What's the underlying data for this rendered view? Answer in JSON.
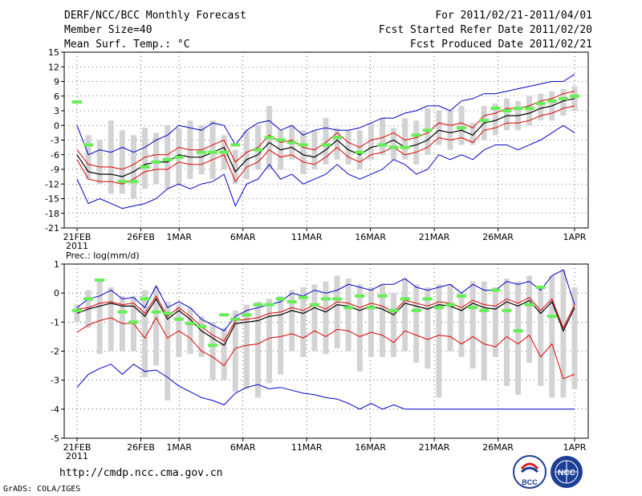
{
  "header": {
    "title": "DERF/NCC/BCC Monthly Forecast",
    "member_size": "Member Size=40",
    "variable": "Mean Surf. Temp.: °C",
    "forecast_period": "For 2011/02/21-2011/04/01",
    "fcst_started": "Fcst Started Refer Date 2011/02/20",
    "fcst_produced": "Fcst Produced Date 2011/02/21"
  },
  "footer": {
    "url": "http://cmdp.ncc.cma.gov.cn",
    "software": "GrADS: COLA/IGES",
    "logo_left_text": "BCC",
    "logo_right_text": "NCC"
  },
  "colors": {
    "mean": "#000000",
    "spread": "#e00000",
    "extreme": "#0000cc",
    "box": "#d3d3d3",
    "observed": "#66ee55"
  },
  "chart_data": [
    {
      "type": "line",
      "title": "Mean Surf. Temp.: °C",
      "x_start_label": "21FEB",
      "x_start_year": "2011",
      "x_tick_labels": [
        "21FEB",
        "26FEB",
        "1MAR",
        "6MAR",
        "11MAR",
        "16MAR",
        "21MAR",
        "26MAR",
        "1APR"
      ],
      "x_tick_days": [
        0,
        5,
        8,
        13,
        18,
        23,
        28,
        33,
        39
      ],
      "ylim": [
        -21,
        15
      ],
      "yticks": [
        -21,
        -18,
        -15,
        -12,
        -9,
        -6,
        -3,
        0,
        3,
        6,
        9,
        12,
        15
      ],
      "series": [
        {
          "name": "ensemble mean",
          "values": [
            -6,
            -9.5,
            -10,
            -10,
            -10.5,
            -9.5,
            -8,
            -7.5,
            -7.5,
            -6,
            -6.5,
            -6.5,
            -5.5,
            -4.5,
            -9.5,
            -7,
            -6,
            -3.5,
            -5,
            -4.5,
            -6,
            -6.5,
            -5,
            -3,
            -5,
            -6,
            -4.5,
            -4,
            -3,
            -4.5,
            -4,
            -3,
            -1,
            -1.5,
            -1,
            -2,
            0.5,
            1,
            2,
            2,
            2.5,
            3.5,
            4,
            5,
            5.5
          ]
        },
        {
          "name": "upper spread",
          "values": [
            -5,
            -8,
            -8.5,
            -8.5,
            -9,
            -8,
            -6.5,
            -6,
            -6,
            -4.5,
            -5,
            -5,
            -4,
            -3,
            -7.5,
            -5.5,
            -4.5,
            -2,
            -3.5,
            -3,
            -4.5,
            -5,
            -3.5,
            -1.5,
            -3.5,
            -4.5,
            -3,
            -2.5,
            -1.5,
            -3,
            -2.5,
            -1.5,
            0.5,
            0,
            0.5,
            -0.5,
            2,
            2.5,
            3.5,
            3.5,
            4,
            5,
            5.5,
            6.5,
            7
          ]
        },
        {
          "name": "lower spread",
          "values": [
            -7,
            -11,
            -11.5,
            -11.5,
            -12,
            -11,
            -9.5,
            -9,
            -9,
            -7.5,
            -8,
            -8,
            -7,
            -6,
            -11.5,
            -8.5,
            -7.5,
            -5,
            -6.5,
            -6,
            -7.5,
            -8,
            -6.5,
            -4.5,
            -6.5,
            -7.5,
            -6,
            -5.5,
            -4.5,
            -6,
            -5.5,
            -4.5,
            -2.5,
            -3,
            -2.5,
            -3.5,
            -1,
            -0.5,
            0.5,
            0.5,
            1,
            2,
            2.5,
            3.5,
            4
          ]
        },
        {
          "name": "maximum",
          "values": [
            0,
            -6,
            -5,
            -5.5,
            -4.5,
            -5.5,
            -4.5,
            -3,
            -2,
            0,
            -0.5,
            -1,
            0.5,
            0,
            -4,
            -1,
            0.5,
            1,
            -1,
            0,
            -2,
            -1,
            -0.5,
            -1,
            -1,
            -0.5,
            0.5,
            1.5,
            1.5,
            2.5,
            3,
            4,
            4,
            3,
            5,
            5.5,
            6.5,
            6.5,
            7,
            7.5,
            8,
            8.5,
            9,
            9,
            10.5
          ]
        },
        {
          "name": "minimum",
          "values": [
            -11,
            -16,
            -15,
            -16,
            -17,
            -16.5,
            -16,
            -15,
            -13,
            -12,
            -13,
            -12,
            -11.5,
            -10,
            -16.5,
            -12,
            -11,
            -8,
            -11,
            -10,
            -12,
            -11,
            -10,
            -8,
            -10,
            -11,
            -10,
            -9,
            -7,
            -8,
            -10,
            -9,
            -6,
            -7,
            -6,
            -7,
            -5,
            -4,
            -4,
            -5,
            -4,
            -3,
            -1.5,
            0,
            -1.5
          ]
        },
        {
          "name": "box upper",
          "values": [
            null,
            -2,
            -3,
            1,
            -1,
            -2,
            -0.5,
            -1.5,
            0,
            -0.5,
            1,
            0,
            1,
            -2,
            -5,
            -1,
            0,
            4,
            -1,
            0,
            -1,
            -1,
            1.5,
            -0.5,
            -1,
            -1,
            0.5,
            1.5,
            -0.5,
            1.5,
            1,
            3.5,
            3,
            3,
            4,
            0.5,
            4,
            4.5,
            5.5,
            5,
            6,
            6.5,
            7,
            7.5,
            8
          ]
        },
        {
          "name": "box lower",
          "values": [
            null,
            -11,
            -12,
            -14,
            -14,
            -15,
            -13,
            -12,
            -13,
            -12,
            -11,
            -10,
            -11,
            -9,
            -12,
            -11,
            -9,
            -9,
            -9,
            -7,
            -10,
            -9,
            -8,
            -7,
            -8,
            -9,
            -7,
            -6,
            -7,
            -7,
            -8,
            -6,
            -4,
            -5,
            -4,
            -4,
            -3,
            -2,
            -1,
            -1,
            0,
            1,
            1,
            2,
            3
          ]
        },
        {
          "name": "observed",
          "values": [
            4.8,
            -4,
            null,
            null,
            -11.5,
            -11.5,
            -8.5,
            -7.5,
            -7,
            -6.5,
            null,
            -5.5,
            -5.5,
            -5.5,
            -4,
            null,
            -5,
            -2.5,
            -3,
            -3.5,
            -4,
            null,
            -4,
            -2.5,
            null,
            -5.5,
            null,
            -4,
            -4.5,
            -4.5,
            -2,
            -1,
            null,
            null,
            -0.5,
            null,
            1,
            3.5,
            3,
            3.5,
            3.5,
            4.5,
            5,
            5.5,
            6
          ]
        }
      ]
    },
    {
      "type": "line",
      "title": "Prec.: log(mm/d)",
      "x_start_label": "21FEB",
      "x_start_year": "2011",
      "x_tick_labels": [
        "21FEB",
        "26FEB",
        "1MAR",
        "6MAR",
        "11MAR",
        "16MAR",
        "21MAR",
        "26MAR",
        "1APR"
      ],
      "x_tick_days": [
        0,
        5,
        8,
        13,
        18,
        23,
        28,
        33,
        39
      ],
      "ylim": [
        -5,
        1
      ],
      "yticks": [
        -5,
        -4,
        -3,
        -2,
        -1,
        0,
        1
      ],
      "series": [
        {
          "name": "ensemble mean",
          "values": [
            -0.7,
            -0.55,
            -0.45,
            -0.35,
            -0.45,
            -0.45,
            -0.8,
            -0.2,
            -0.9,
            -0.6,
            -0.9,
            -1.3,
            -1.55,
            -1.8,
            -1.05,
            -1.0,
            -0.95,
            -0.8,
            -0.75,
            -0.6,
            -0.7,
            -0.5,
            -0.65,
            -0.4,
            -0.45,
            -0.6,
            -0.45,
            -0.55,
            -0.75,
            -0.35,
            -0.45,
            -0.55,
            -0.4,
            -0.45,
            -0.6,
            -0.35,
            -0.5,
            -0.55,
            -0.3,
            -0.45,
            -0.25,
            -0.7,
            -0.3,
            -1.3,
            -0.5
          ]
        },
        {
          "name": "upper spread",
          "values": [
            -0.55,
            -0.5,
            -0.35,
            -0.3,
            -0.4,
            -0.35,
            -0.7,
            -0.1,
            -0.8,
            -0.5,
            -0.8,
            -1.15,
            -1.45,
            -1.65,
            -0.95,
            -0.9,
            -0.85,
            -0.7,
            -0.65,
            -0.5,
            -0.6,
            -0.4,
            -0.55,
            -0.3,
            -0.35,
            -0.5,
            -0.35,
            -0.45,
            -0.65,
            -0.25,
            -0.35,
            -0.45,
            -0.3,
            -0.35,
            -0.5,
            -0.25,
            -0.4,
            -0.45,
            -0.2,
            -0.35,
            -0.15,
            -0.6,
            -0.2,
            -1.2,
            -0.4
          ]
        },
        {
          "name": "lower spread",
          "values": [
            -1.35,
            -1.1,
            -0.95,
            -0.85,
            -1.05,
            -1.05,
            -1.55,
            -0.85,
            -1.55,
            -1.3,
            -1.55,
            -2.0,
            -2.2,
            -2.5,
            -1.9,
            -1.8,
            -1.75,
            -1.55,
            -1.5,
            -1.4,
            -1.55,
            -1.3,
            -1.5,
            -1.25,
            -1.3,
            -1.5,
            -1.35,
            -1.45,
            -1.7,
            -1.3,
            -1.45,
            -1.6,
            -1.45,
            -1.5,
            -1.75,
            -1.5,
            -1.75,
            -1.85,
            -1.5,
            -1.75,
            -1.45,
            -2.2,
            -1.75,
            -2.95,
            -2.8
          ]
        },
        {
          "name": "maximum",
          "values": [
            -0.5,
            -0.2,
            -0.1,
            0.1,
            -0.2,
            -0.15,
            -0.5,
            0.25,
            -0.5,
            -0.3,
            -0.5,
            -0.9,
            -1.1,
            -1.3,
            -0.8,
            -0.6,
            -0.5,
            -0.4,
            -0.3,
            0.0,
            -0.1,
            0.1,
            0.0,
            0.1,
            0.3,
            0.2,
            0.1,
            0.3,
            0.3,
            0.5,
            0.2,
            0.1,
            0.2,
            0.3,
            0.0,
            0.3,
            0.1,
            0.1,
            0.4,
            0.3,
            0.4,
            0.1,
            0.6,
            0.8,
            -0.4
          ]
        },
        {
          "name": "minimum",
          "values": [
            -3.25,
            -2.8,
            -2.6,
            -2.45,
            -2.8,
            -2.45,
            -2.7,
            -2.65,
            -2.9,
            -3.2,
            -3.4,
            -3.6,
            -3.7,
            -3.85,
            -3.45,
            -3.25,
            -3.15,
            -3.3,
            -3.25,
            -3.35,
            -3.45,
            -3.5,
            -3.6,
            -3.65,
            -3.8,
            -4.0,
            -3.8,
            -4.0,
            -3.85,
            -4.0,
            -4.0,
            -4.0,
            -4.0,
            -4.0,
            -4.0,
            -4.0,
            -4.0,
            -4.0,
            -4.0,
            -4.0,
            -4.0,
            -4.0,
            -4.0,
            -4.0,
            -4.0
          ]
        },
        {
          "name": "box upper",
          "values": [
            -0.4,
            0.1,
            0.4,
            0.2,
            -0.1,
            -0.1,
            0.1,
            0.2,
            -0.3,
            -0.4,
            -0.5,
            -0.8,
            -1.0,
            -1.2,
            -0.6,
            -0.4,
            -0.3,
            -0.2,
            -0.1,
            0.1,
            0.2,
            0.3,
            0.4,
            0.6,
            0.5,
            0.3,
            0.2,
            0.3,
            0.0,
            0.5,
            0.3,
            0.2,
            0.3,
            0.3,
            0.0,
            0.4,
            0.4,
            0.2,
            0.5,
            0.4,
            0.6,
            0.2,
            0.6,
            0.8,
            0.2
          ]
        },
        {
          "name": "box lower",
          "values": [
            -1.0,
            -1.2,
            -2.1,
            -2.0,
            -2.0,
            -2.0,
            -2.9,
            -2.5,
            -3.7,
            -2.2,
            -2.1,
            -2.2,
            -3.0,
            -3.0,
            -3.4,
            -3.3,
            -3.6,
            -3.1,
            -2.8,
            -2.0,
            -2.2,
            -2.0,
            -2.1,
            -1.9,
            -2.0,
            -2.7,
            -2.2,
            -2.2,
            -2.2,
            -2.0,
            -2.4,
            -2.6,
            -3.6,
            -2.0,
            -2.2,
            -2.6,
            -3.0,
            -2.2,
            -3.2,
            -3.5,
            -2.4,
            -3.2,
            -3.6,
            -3.6,
            -3.3
          ]
        },
        {
          "name": "observed",
          "values": [
            -0.6,
            -0.2,
            0.45,
            null,
            -0.65,
            -1.0,
            -0.2,
            -0.65,
            -0.7,
            -0.9,
            -1.05,
            -1.15,
            -1.8,
            -0.75,
            -0.9,
            -0.75,
            -0.4,
            -0.4,
            -0.2,
            -0.3,
            -0.15,
            -0.4,
            -0.2,
            -0.2,
            -0.5,
            -0.1,
            -0.5,
            -0.1,
            -0.6,
            -0.2,
            -0.6,
            -0.2,
            -0.5,
            -0.4,
            -0.1,
            -0.5,
            -0.6,
            0.1,
            -0.6,
            -1.3,
            -0.4,
            0.2,
            -0.8,
            null,
            null
          ]
        }
      ]
    }
  ]
}
